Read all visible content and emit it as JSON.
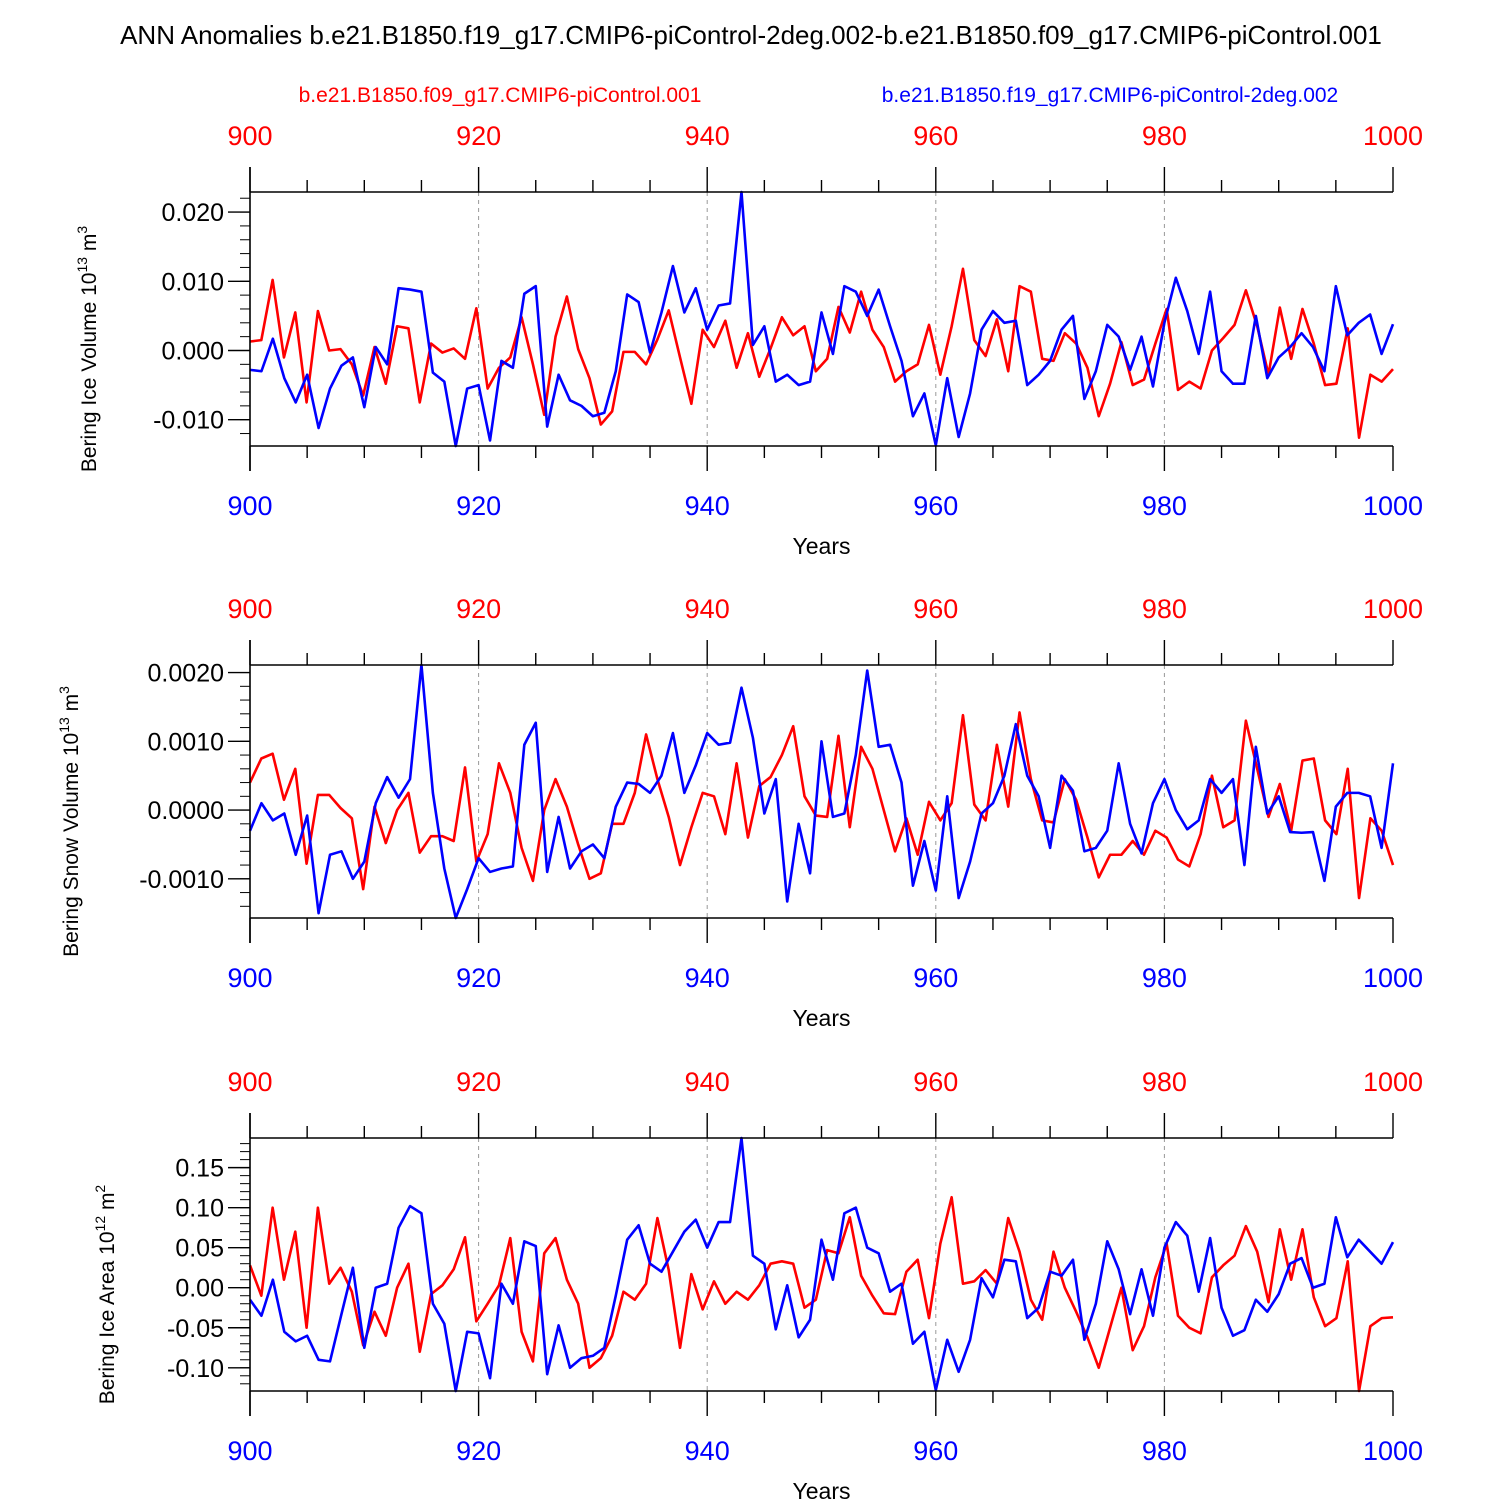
{
  "title": "ANN Anomalies b.e21.B1850.f19_g17.CMIP6-piControl-2deg.002-b.e21.B1850.f09_g17.CMIP6-piControl.001",
  "legend": {
    "red_name": "b.e21.B1850.f09_g17.CMIP6-piControl.001",
    "blue_name": "b.e21.B1850.f19_g17.CMIP6-piControl-2deg.002"
  },
  "colors": {
    "red": "#ff0000",
    "blue": "#0000ff",
    "axis": "#000000",
    "grid": "#999999"
  },
  "chart_data": [
    {
      "type": "line",
      "ylabel_main": "Bering Ice Volume 10",
      "ylabel_exp": "13",
      "ylabel_unit": " m",
      "ylabel_unit_exp": "3",
      "xlabel": "Years",
      "xlim": [
        900,
        1000
      ],
      "ylim": [
        -0.0138,
        0.0229
      ],
      "xticks": [
        900,
        920,
        940,
        960,
        980,
        1000
      ],
      "xtick_labels": [
        "900",
        "920",
        "940",
        "960",
        "980",
        "1000"
      ],
      "yticks": [
        -0.01,
        0.0,
        0.01,
        0.02
      ],
      "ytick_labels": [
        "-0.010",
        "0.000",
        "0.010",
        "0.020"
      ],
      "yminor_step": 0.002,
      "grid_x": [
        920,
        940,
        960,
        980
      ],
      "series": [
        {
          "name": "b.e21.B1850.f09_g17.CMIP6-piControl.001",
          "color": "red",
          "values": [
            0.0013,
            0.0015,
            0.0102,
            -0.001,
            0.0055,
            -0.0075,
            0.0057,
            0.0,
            0.0002,
            -0.002,
            -0.0065,
            0.0005,
            -0.0048,
            0.0035,
            0.0032,
            -0.0075,
            0.001,
            -0.0003,
            0.0003,
            -0.0012,
            0.0061,
            -0.0055,
            -0.0025,
            -0.001,
            0.0048,
            -0.002,
            -0.0093,
            0.002,
            0.0078,
            0.0002,
            -0.004,
            -0.0107,
            -0.0088,
            -0.0002,
            -0.0002,
            -0.002,
            0.0016,
            0.0058,
            -0.001,
            -0.0077,
            0.003,
            0.0005,
            0.0043,
            -0.0025,
            0.0025,
            -0.0038,
            0.0003,
            0.0048,
            0.0022,
            0.0035,
            -0.003,
            -0.0012,
            0.0063,
            0.0026,
            0.0085,
            0.003,
            0.0005,
            -0.0045,
            -0.003,
            -0.002,
            0.0037,
            -0.0035,
            0.0035,
            0.0118,
            0.0015,
            -0.0008,
            0.0045,
            -0.003,
            0.0093,
            0.0085,
            -0.0012,
            -0.0015,
            0.0025,
            0.001,
            -0.0025,
            -0.0095,
            -0.0048,
            0.0012,
            -0.005,
            -0.0042,
            0.001,
            0.006,
            -0.0057,
            -0.0045,
            -0.0055,
            0.0,
            0.0018,
            0.0037,
            0.0087,
            0.0035,
            -0.0035,
            0.0062,
            -0.0012,
            0.006,
            0.001,
            -0.005,
            -0.0048,
            0.0032,
            -0.0126,
            -0.0035,
            -0.0045,
            -0.0027
          ]
        },
        {
          "name": "b.e21.B1850.f19_g17.CMIP6-piControl-2deg.002",
          "color": "blue",
          "values": [
            -0.0028,
            -0.003,
            0.0017,
            -0.004,
            -0.0075,
            -0.0035,
            -0.0112,
            -0.0055,
            -0.0022,
            -0.001,
            -0.0082,
            0.0005,
            -0.002,
            0.009,
            0.0088,
            0.0085,
            -0.0032,
            -0.0045,
            -0.0138,
            -0.0055,
            -0.005,
            -0.013,
            -0.0015,
            -0.0025,
            0.0082,
            0.0093,
            -0.011,
            -0.0035,
            -0.0072,
            -0.008,
            -0.0095,
            -0.009,
            -0.003,
            0.0081,
            0.007,
            -0.0003,
            0.0055,
            0.0122,
            0.0055,
            0.009,
            0.003,
            0.0065,
            0.0068,
            0.0229,
            0.0008,
            0.0035,
            -0.0045,
            -0.0035,
            -0.005,
            -0.0045,
            0.0055,
            -0.0005,
            0.0093,
            0.0085,
            0.005,
            0.0088,
            0.0035,
            -0.0015,
            -0.0095,
            -0.0062,
            -0.0137,
            -0.004,
            -0.0125,
            -0.0062,
            0.003,
            0.0057,
            0.004,
            0.0043,
            -0.005,
            -0.0035,
            -0.0015,
            0.003,
            0.005,
            -0.007,
            -0.003,
            0.0037,
            0.002,
            -0.0028,
            0.002,
            -0.0052,
            0.004,
            0.0105,
            0.0057,
            -0.0005,
            0.0085,
            -0.003,
            -0.0048,
            -0.0048,
            0.005,
            -0.004,
            -0.001,
            0.0005,
            0.0025,
            0.0005,
            -0.003,
            0.0093,
            0.0022,
            0.004,
            0.0052,
            -0.0005,
            0.0038
          ]
        }
      ]
    },
    {
      "type": "line",
      "ylabel_main": "Bering Snow Volume 10",
      "ylabel_exp": "13",
      "ylabel_unit": " m",
      "ylabel_unit_exp": "3",
      "xlabel": "Years",
      "xlim": [
        900,
        1000
      ],
      "ylim": [
        -0.00157,
        0.00211
      ],
      "xticks": [
        900,
        920,
        940,
        960,
        980,
        1000
      ],
      "xtick_labels": [
        "900",
        "920",
        "940",
        "960",
        "980",
        "1000"
      ],
      "yticks": [
        -0.001,
        0.0,
        0.001,
        0.002
      ],
      "ytick_labels": [
        "-0.0010",
        "0.0000",
        "0.0010",
        "0.0020"
      ],
      "yminor_step": 0.0002,
      "grid_x": [
        920,
        940,
        960,
        980
      ],
      "series": [
        {
          "name": "b.e21.B1850.f09_g17.CMIP6-piControl.001",
          "color": "red",
          "values": [
            0.0004,
            0.00075,
            0.00082,
            0.00015,
            0.0006,
            -0.00078,
            0.00022,
            0.00022,
            3e-05,
            -0.00012,
            -0.00115,
            5e-05,
            -0.00048,
            0.0,
            0.00025,
            -0.00062,
            -0.00038,
            -0.00038,
            -0.00045,
            0.00062,
            -0.00075,
            -0.00035,
            0.00068,
            0.00025,
            -0.00055,
            -0.00103,
            0.0,
            0.00045,
            5e-05,
            -0.0005,
            -0.001,
            -0.00092,
            -0.0002,
            -0.0002,
            0.00025,
            0.0011,
            0.00045,
            -0.0001,
            -0.0008,
            -0.00025,
            0.00025,
            0.0002,
            -0.00035,
            0.00068,
            -0.0004,
            0.00035,
            0.00048,
            0.0008,
            0.00122,
            0.0002,
            -8e-05,
            -0.0001,
            0.00108,
            -0.00025,
            0.00092,
            0.0006,
            0.0,
            -0.0006,
            -0.00012,
            -0.00065,
            0.00012,
            -0.00015,
            0.0001,
            0.00138,
            8e-05,
            -0.00015,
            0.00095,
            5e-05,
            0.00142,
            0.00045,
            -0.00015,
            -0.00018,
            0.00045,
            0.00015,
            -0.0004,
            -0.00098,
            -0.00065,
            -0.00065,
            -0.00045,
            -0.00065,
            -0.0003,
            -0.0004,
            -0.00072,
            -0.00082,
            -0.00035,
            0.0005,
            -0.00025,
            -0.00015,
            0.0013,
            0.0006,
            -0.0001,
            0.00038,
            -0.0003,
            0.00072,
            0.00075,
            -0.00015,
            -0.00035,
            0.0006,
            -0.00128,
            -0.00012,
            -0.0003,
            -0.0008
          ]
        },
        {
          "name": "b.e21.B1850.f19_g17.CMIP6-piControl-2deg.002",
          "color": "blue",
          "values": [
            -0.0003,
            0.0001,
            -0.00015,
            -5e-05,
            -0.00065,
            -8e-05,
            -0.0015,
            -0.00065,
            -0.0006,
            -0.001,
            -0.00075,
            0.0001,
            0.00048,
            0.00018,
            0.00045,
            0.00211,
            0.00025,
            -0.00085,
            -0.00157,
            -0.00115,
            -0.0007,
            -0.0009,
            -0.00085,
            -0.00082,
            0.00095,
            0.00127,
            -0.0009,
            -0.0001,
            -0.00085,
            -0.0006,
            -0.0005,
            -0.0007,
            5e-05,
            0.0004,
            0.00038,
            0.00025,
            0.0005,
            0.00112,
            0.00025,
            0.00065,
            0.00112,
            0.00095,
            0.00098,
            0.00178,
            0.00105,
            -5e-05,
            0.00045,
            -0.00133,
            -0.0002,
            -0.00092,
            0.001,
            -0.0001,
            -5e-05,
            0.0008,
            0.00203,
            0.00092,
            0.00095,
            0.0004,
            -0.0011,
            -0.00045,
            -0.00117,
            0.0002,
            -0.00128,
            -0.00075,
            -5e-05,
            0.0001,
            0.0005,
            0.00125,
            0.0005,
            0.0002,
            -0.00055,
            0.0005,
            0.00028,
            -0.0006,
            -0.00055,
            -0.0003,
            0.00068,
            -0.0002,
            -0.00063,
            0.0001,
            0.00045,
            0.0,
            -0.00028,
            -0.00015,
            0.00045,
            0.00025,
            0.00045,
            -0.0008,
            0.00092,
            -5e-05,
            0.0002,
            -0.00032,
            -0.00033,
            -0.00032,
            -0.00103,
            5e-05,
            0.00025,
            0.00025,
            0.0002,
            -0.00055,
            0.00068
          ]
        }
      ]
    },
    {
      "type": "line",
      "ylabel_main": "Bering Ice Area 10",
      "ylabel_exp": "12",
      "ylabel_unit": " m",
      "ylabel_unit_exp": "2",
      "xlabel": "Years",
      "xlim": [
        900,
        1000
      ],
      "ylim": [
        -0.129,
        0.187
      ],
      "xticks": [
        900,
        920,
        940,
        960,
        980,
        1000
      ],
      "xtick_labels": [
        "900",
        "920",
        "940",
        "960",
        "980",
        "1000"
      ],
      "yticks": [
        -0.1,
        -0.05,
        0.0,
        0.05,
        0.1,
        0.15
      ],
      "ytick_labels": [
        "-0.10",
        "-0.05",
        "0.00",
        "0.05",
        "0.10",
        "0.15"
      ],
      "yminor_step": 0.01,
      "grid_x": [
        920,
        940,
        960,
        980
      ],
      "series": [
        {
          "name": "b.e21.B1850.f09_g17.CMIP6-piControl.001",
          "color": "red",
          "values": [
            0.028,
            -0.01,
            0.1,
            0.01,
            0.07,
            -0.05,
            0.1,
            0.005,
            0.025,
            -0.005,
            -0.072,
            -0.03,
            -0.06,
            0.0,
            0.03,
            -0.08,
            -0.008,
            0.003,
            0.023,
            0.063,
            -0.042,
            -0.02,
            0.003,
            0.062,
            -0.055,
            -0.092,
            0.043,
            0.062,
            0.01,
            -0.02,
            -0.1,
            -0.088,
            -0.06,
            -0.005,
            -0.015,
            0.005,
            0.087,
            0.022,
            -0.075,
            0.017,
            -0.027,
            0.008,
            -0.02,
            -0.005,
            -0.015,
            0.003,
            0.03,
            0.033,
            0.03,
            -0.025,
            -0.015,
            0.047,
            0.043,
            0.088,
            0.015,
            -0.01,
            -0.032,
            -0.033,
            0.02,
            0.035,
            -0.038,
            0.055,
            0.113,
            0.005,
            0.008,
            0.022,
            0.005,
            0.087,
            0.045,
            -0.015,
            -0.04,
            0.045,
            0.0,
            -0.03,
            -0.062,
            -0.1,
            -0.05,
            0.0,
            -0.078,
            -0.048,
            0.013,
            0.055,
            -0.035,
            -0.05,
            -0.057,
            0.013,
            0.028,
            0.04,
            0.077,
            0.045,
            -0.018,
            0.073,
            0.01,
            0.073,
            -0.012,
            -0.048,
            -0.038,
            0.033,
            -0.129,
            -0.048,
            -0.038,
            -0.037
          ]
        },
        {
          "name": "b.e21.B1850.f19_g17.CMIP6-piControl-2deg.002",
          "color": "blue",
          "values": [
            -0.015,
            -0.035,
            0.01,
            -0.055,
            -0.067,
            -0.06,
            -0.09,
            -0.092,
            -0.033,
            0.025,
            -0.075,
            0.0,
            0.005,
            0.075,
            0.102,
            0.093,
            -0.02,
            -0.045,
            -0.129,
            -0.055,
            -0.057,
            -0.113,
            0.005,
            -0.02,
            0.058,
            0.052,
            -0.108,
            -0.047,
            -0.1,
            -0.088,
            -0.085,
            -0.075,
            -0.01,
            0.06,
            0.078,
            0.03,
            0.02,
            0.045,
            0.07,
            0.085,
            0.05,
            0.082,
            0.082,
            0.187,
            0.04,
            0.03,
            -0.052,
            0.003,
            -0.062,
            -0.04,
            0.06,
            0.01,
            0.093,
            0.1,
            0.05,
            0.043,
            -0.005,
            0.005,
            -0.07,
            -0.055,
            -0.128,
            -0.065,
            -0.105,
            -0.065,
            0.012,
            -0.012,
            0.035,
            0.033,
            -0.038,
            -0.025,
            0.02,
            0.015,
            0.035,
            -0.065,
            -0.02,
            0.058,
            0.023,
            -0.033,
            0.023,
            -0.035,
            0.05,
            0.082,
            0.065,
            -0.005,
            0.062,
            -0.025,
            -0.06,
            -0.053,
            -0.015,
            -0.03,
            -0.008,
            0.03,
            0.037,
            0.0,
            0.005,
            0.088,
            0.038,
            0.06,
            0.045,
            0.03,
            0.057
          ]
        }
      ]
    }
  ]
}
